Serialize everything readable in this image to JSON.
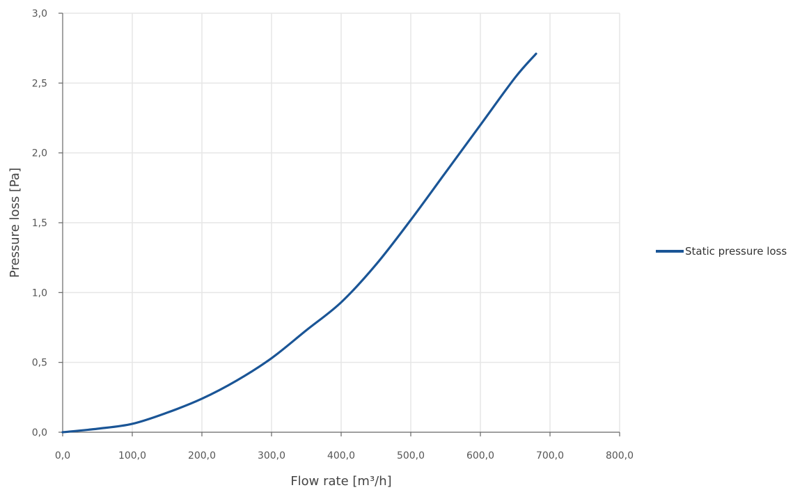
{
  "chart_data": {
    "type": "line",
    "xlabel": "Flow rate [m³/h]",
    "ylabel": "Pressure loss [Pa]",
    "xlim": [
      0,
      800
    ],
    "ylim": [
      0,
      3
    ],
    "x_ticks": [
      0,
      100,
      200,
      300,
      400,
      500,
      600,
      700,
      800
    ],
    "y_ticks": [
      0,
      0.5,
      1.0,
      1.5,
      2.0,
      2.5,
      3.0
    ],
    "x_tick_labels": [
      "0,0",
      "100,0",
      "200,0",
      "300,0",
      "400,0",
      "500,0",
      "600,0",
      "700,0",
      "800,0"
    ],
    "y_tick_labels": [
      "0,0",
      "0,5",
      "1,0",
      "1,5",
      "2,0",
      "2,5",
      "3,0"
    ],
    "grid": "vertical and horizontal",
    "legend_position": "right",
    "series": [
      {
        "name": "Static pressure loss",
        "color": "#1a5596",
        "x": [
          0,
          50,
          100,
          150,
          200,
          250,
          300,
          350,
          400,
          450,
          500,
          550,
          600,
          650,
          680
        ],
        "y": [
          0,
          0.025,
          0.06,
          0.14,
          0.24,
          0.37,
          0.53,
          0.73,
          0.93,
          1.2,
          1.52,
          1.86,
          2.2,
          2.54,
          2.71
        ]
      }
    ]
  }
}
